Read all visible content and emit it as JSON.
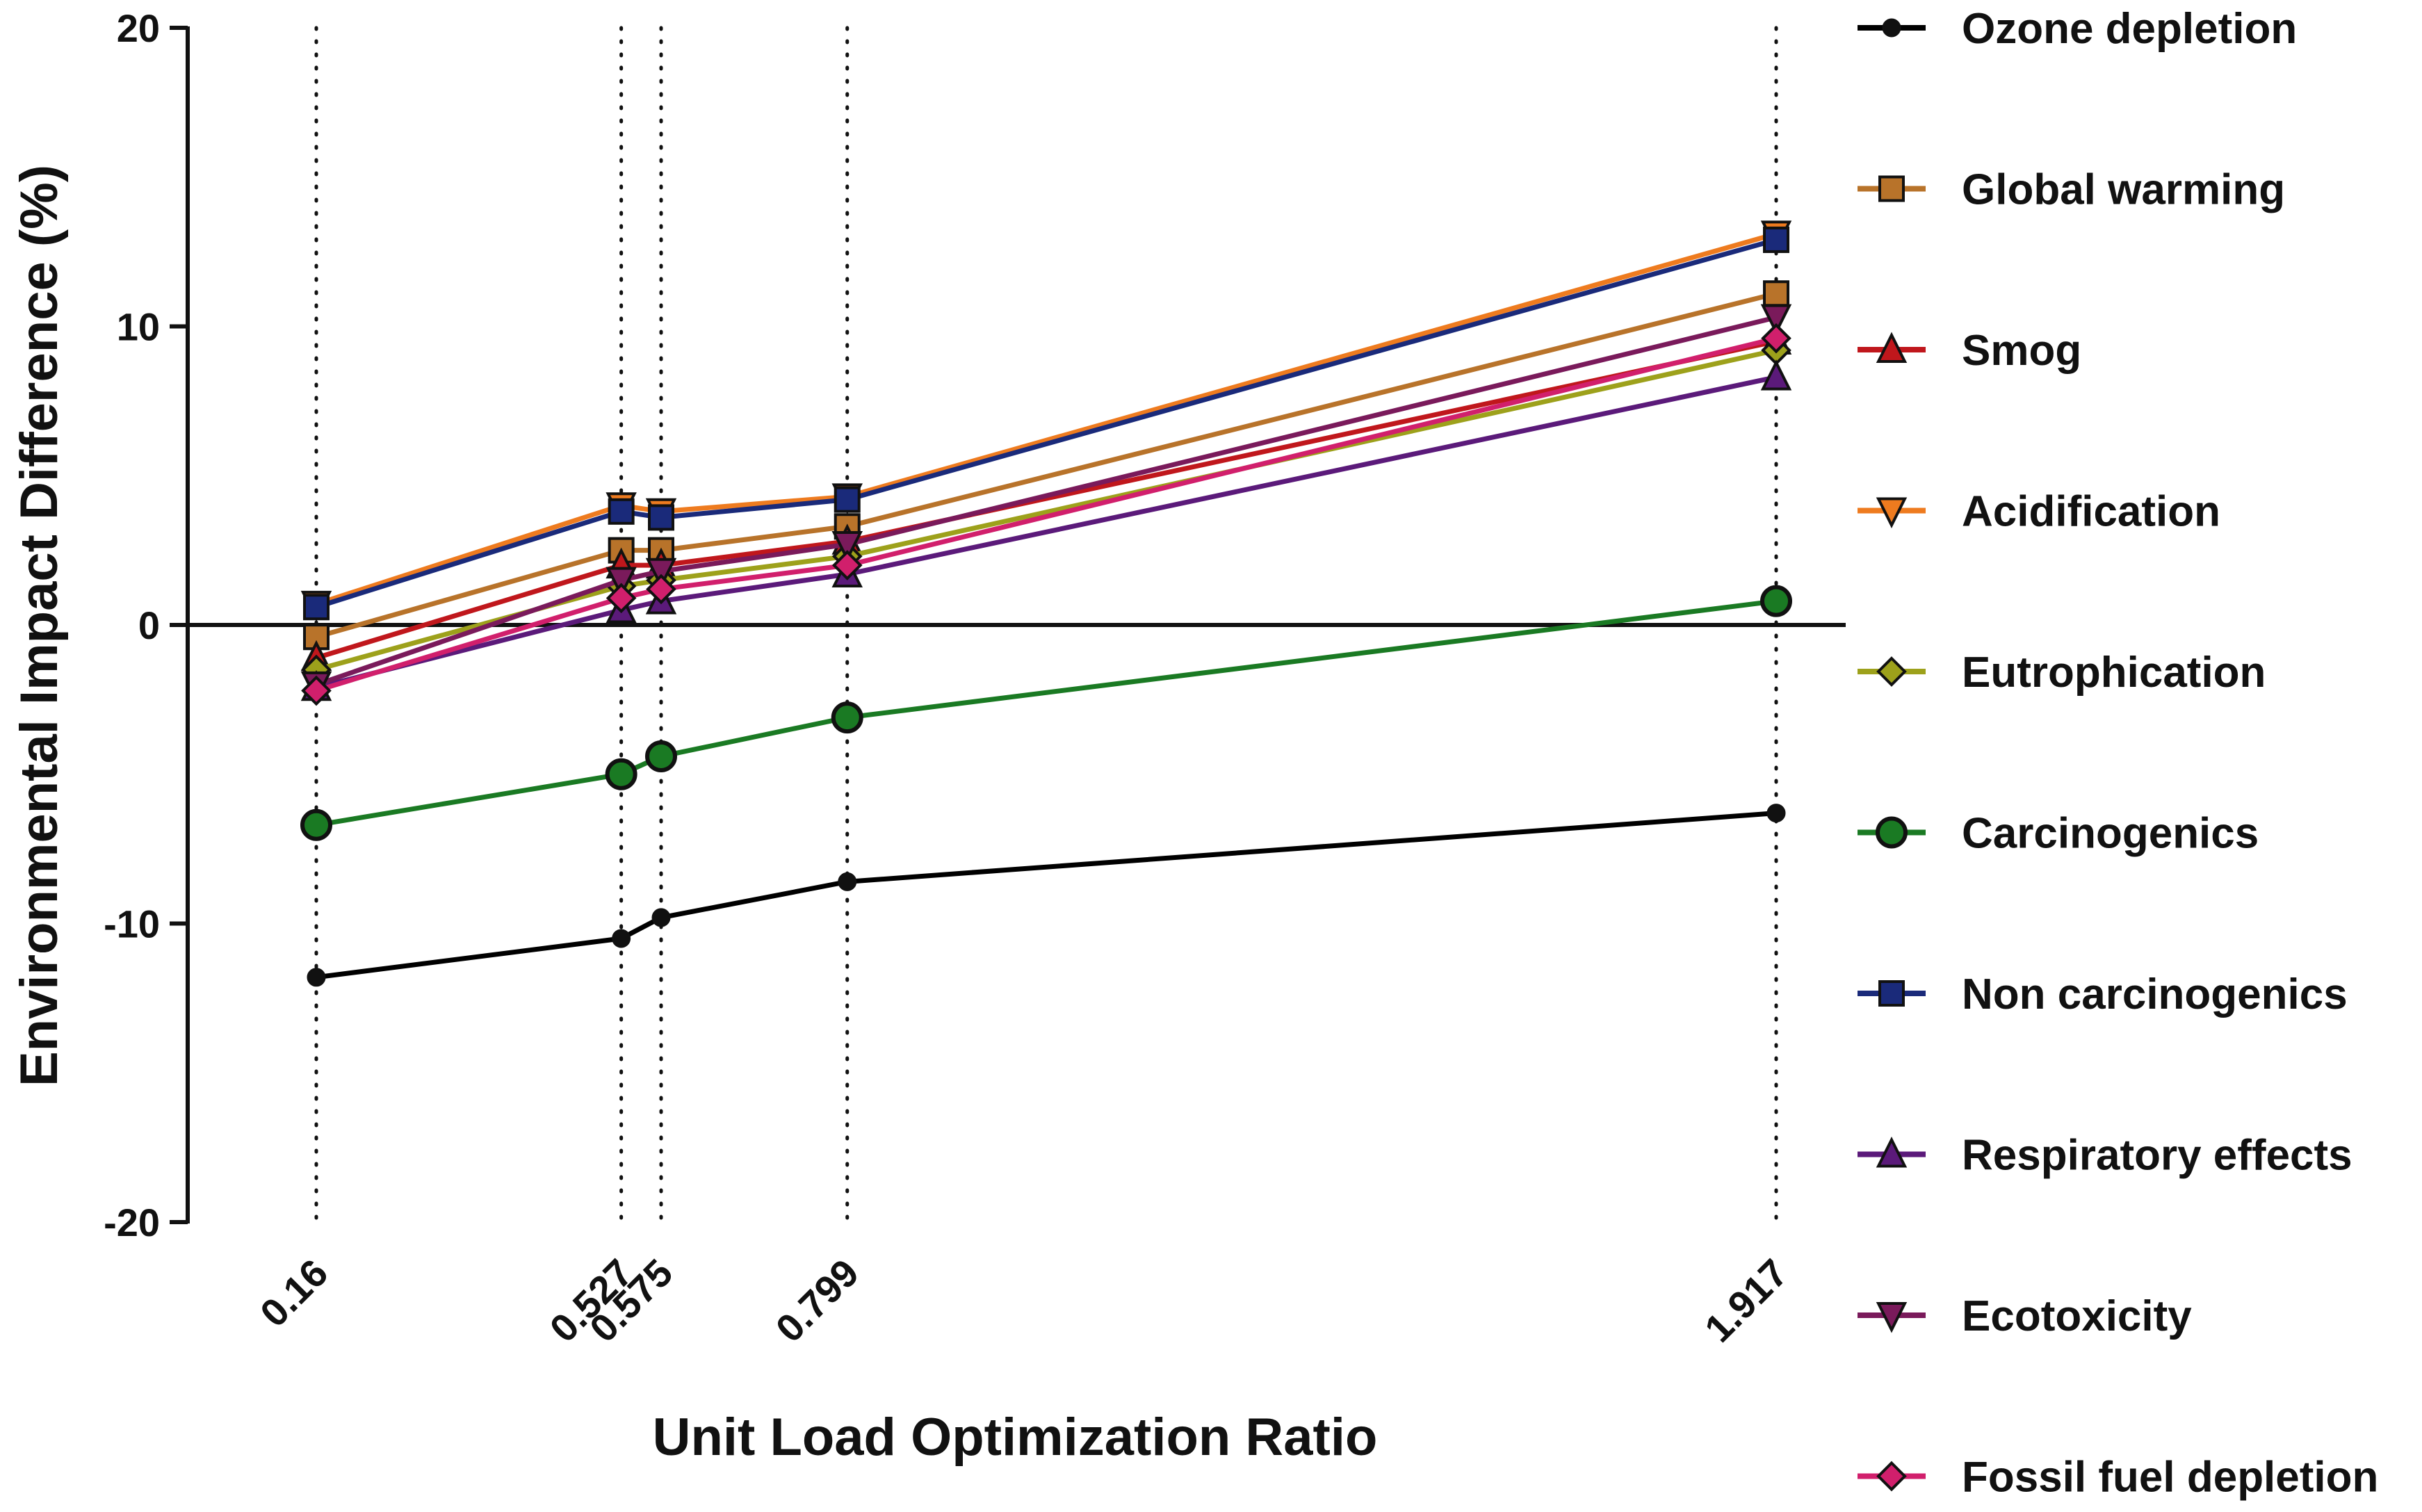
{
  "chart_data": {
    "type": "line",
    "title": "",
    "xlabel": "Unit Load Optimization Ratio",
    "ylabel": "Environmental Impact Difference (%)",
    "x": [
      0.16,
      0.527,
      0.575,
      0.799,
      1.917
    ],
    "x_tick_labels": [
      "0.16",
      "0.527",
      "0.575",
      "0.799",
      "1.917"
    ],
    "xlim": [
      0.16,
      1.917
    ],
    "ylim": [
      -20,
      20
    ],
    "y_ticks": [
      20,
      10,
      0,
      -10,
      -20
    ],
    "y_tick_labels": [
      "20",
      "10",
      "0",
      "-10",
      "-20"
    ],
    "grid": "vertical dotted lines at each x value",
    "legend_position": "right",
    "series": [
      {
        "name": "Ozone depletion",
        "color": "#000000",
        "marker": "circle-small",
        "values": [
          -11.8,
          -10.5,
          -9.8,
          -8.6,
          -6.3
        ]
      },
      {
        "name": "Global warming",
        "color": "#b8732a",
        "marker": "square",
        "values": [
          -0.4,
          2.5,
          2.5,
          3.3,
          11.1
        ]
      },
      {
        "name": "Smog",
        "color": "#c0171c",
        "marker": "triangle-up",
        "values": [
          -1.1,
          2.0,
          2.0,
          2.8,
          9.5
        ]
      },
      {
        "name": "Acidification",
        "color": "#ee7b1f",
        "marker": "triangle-down",
        "values": [
          0.7,
          4.0,
          3.8,
          4.3,
          13.1
        ]
      },
      {
        "name": "Eutrophication",
        "color": "#9da11b",
        "marker": "diamond",
        "values": [
          -1.5,
          1.3,
          1.5,
          2.3,
          9.2
        ]
      },
      {
        "name": "Carcinogenics",
        "color": "#1a7a23",
        "marker": "circle",
        "values": [
          -6.7,
          -5.0,
          -4.4,
          -3.1,
          0.8
        ]
      },
      {
        "name": "Non carcinogenics",
        "color": "#1a2a7a",
        "marker": "square",
        "values": [
          0.6,
          3.8,
          3.6,
          4.2,
          12.9
        ]
      },
      {
        "name": "Respiratory effects",
        "color": "#5b1a7a",
        "marker": "triangle-up",
        "values": [
          -2.1,
          0.5,
          0.8,
          1.7,
          8.3
        ]
      },
      {
        "name": "Ecotoxicity",
        "color": "#7a1a5b",
        "marker": "triangle-down",
        "values": [
          -2.0,
          1.5,
          1.8,
          2.7,
          10.3
        ]
      },
      {
        "name": "Fossil fuel depletion",
        "color": "#d11f6c",
        "marker": "diamond",
        "values": [
          -2.2,
          0.9,
          1.2,
          2.0,
          9.6
        ]
      }
    ]
  }
}
